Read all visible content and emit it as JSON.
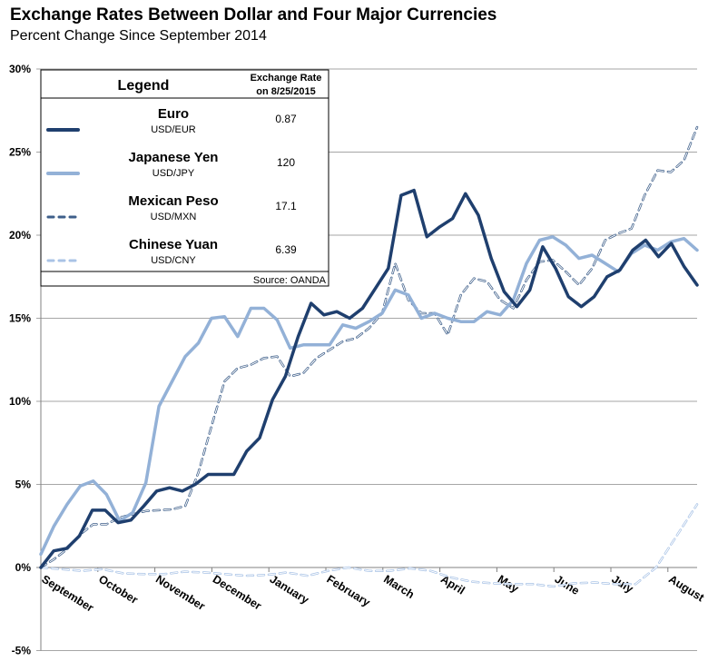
{
  "title": "Exchange Rates Between Dollar and Four Major Currencies",
  "subtitle": "Percent Change Since September 2014",
  "legend": {
    "heading": "Legend",
    "rate_heading_1": "Exchange Rate",
    "rate_heading_2": "on 8/25/2015",
    "source": "Source: OANDA",
    "items": [
      {
        "name": "Euro",
        "pair": "USD/EUR",
        "rate": "0.87"
      },
      {
        "name": "Japanese Yen",
        "pair": "USD/JPY",
        "rate": "120"
      },
      {
        "name": "Mexican Peso",
        "pair": "USD/MXN",
        "rate": "17.1"
      },
      {
        "name": "Chinese Yuan",
        "pair": "USD/CNY",
        "rate": "6.39"
      }
    ]
  },
  "chart_data": {
    "type": "line",
    "title": "Exchange Rates Between Dollar and Four Major Currencies",
    "subtitle": "Percent Change Since September 2014",
    "x_tick_labels": [
      "September",
      "October",
      "November",
      "December",
      "January",
      "February",
      "March",
      "April",
      "May",
      "June",
      "July",
      "August"
    ],
    "y_tick_labels": [
      "-5%",
      "0%",
      "5%",
      "10%",
      "15%",
      "20%",
      "25%",
      "30%"
    ],
    "ylim": [
      -5,
      30
    ],
    "y_unit": "%",
    "grid": "horizontal",
    "legend_placement": "top-left",
    "series": [
      {
        "name": "Euro",
        "color": "#1F3F6E",
        "style": "solid",
        "values": [
          0,
          1.0,
          1.15,
          1.9,
          3.45,
          3.45,
          2.7,
          2.85,
          3.7,
          4.6,
          4.8,
          4.6,
          5.0,
          5.6,
          5.6,
          5.6,
          7.0,
          7.8,
          10.1,
          11.5,
          13.9,
          15.9,
          15.2,
          15.4,
          15.0,
          15.6,
          16.8,
          18.0,
          22.4,
          22.7,
          19.9,
          20.5,
          21.0,
          22.5,
          21.2,
          18.6,
          16.6,
          15.7,
          16.7,
          19.3,
          18.0,
          16.3,
          15.7,
          16.3,
          17.5,
          17.9,
          19.1,
          19.7,
          18.7,
          19.5,
          18.1,
          17.0
        ]
      },
      {
        "name": "Japanese Yen",
        "color": "#93B1D7",
        "style": "solid",
        "values": [
          0.8,
          2.5,
          3.8,
          4.9,
          5.2,
          4.4,
          2.8,
          3.3,
          5.1,
          9.7,
          11.2,
          12.7,
          13.5,
          15.0,
          15.1,
          13.9,
          15.6,
          15.6,
          14.9,
          13.2,
          13.4,
          13.4,
          13.4,
          14.6,
          14.4,
          14.8,
          15.3,
          16.7,
          16.4,
          15.0,
          15.3,
          15.0,
          14.8,
          14.8,
          15.4,
          15.2,
          16.1,
          18.3,
          19.7,
          19.9,
          19.4,
          18.6,
          18.8,
          18.3,
          17.8,
          18.9,
          19.4,
          19.1,
          19.6,
          19.8,
          19.1
        ]
      },
      {
        "name": "Mexican Peso",
        "color": "#3E5F8A",
        "style": "dashed",
        "values": [
          0,
          0.5,
          1.1,
          2.0,
          2.6,
          2.6,
          3.0,
          3.2,
          3.4,
          3.45,
          3.5,
          3.7,
          5.7,
          8.5,
          11.2,
          12.0,
          12.2,
          12.6,
          12.7,
          11.5,
          11.7,
          12.6,
          13.1,
          13.6,
          13.8,
          14.4,
          15.3,
          18.3,
          16.1,
          15.3,
          15.3,
          14.0,
          16.4,
          17.4,
          17.2,
          16.1,
          15.6,
          17.3,
          18.4,
          18.5,
          17.8,
          17.0,
          18.0,
          19.7,
          20.1,
          20.4,
          22.4,
          23.9,
          23.8,
          24.5,
          26.5
        ]
      },
      {
        "name": "Chinese Yuan",
        "color": "#A9C3E6",
        "style": "dashed",
        "values": [
          0,
          -0.1,
          -0.2,
          -0.1,
          -0.35,
          -0.4,
          -0.4,
          -0.25,
          -0.3,
          -0.4,
          -0.5,
          -0.45,
          -0.3,
          -0.5,
          -0.2,
          0,
          -0.2,
          -0.2,
          -0.05,
          -0.2,
          -0.6,
          -0.85,
          -0.95,
          -1.0,
          -1.0,
          -1.15,
          -0.95,
          -0.9,
          -1.0,
          -1.0,
          0,
          1.9,
          3.8
        ]
      }
    ]
  }
}
